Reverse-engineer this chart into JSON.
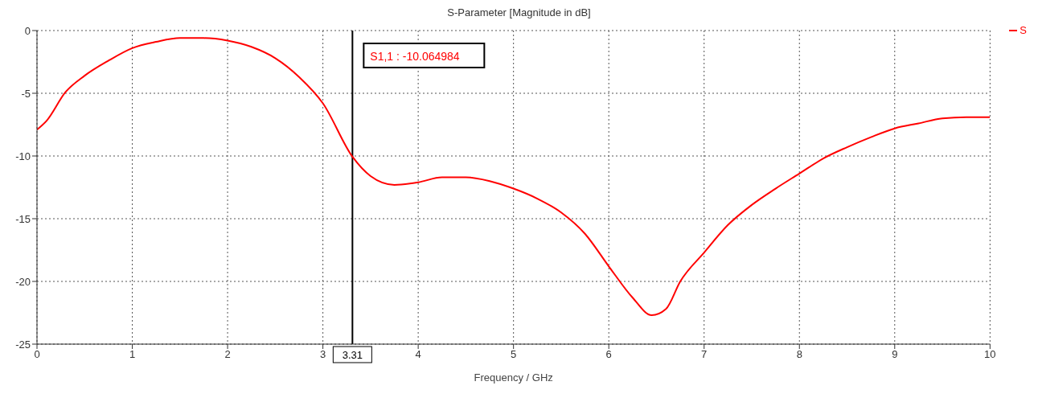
{
  "chart_data": {
    "type": "line",
    "title": "S-Parameter [Magnitude in dB]",
    "xlabel": "Frequency / GHz",
    "x": [
      0,
      0.1,
      0.3,
      0.5,
      0.75,
      1,
      1.25,
      1.5,
      1.75,
      2,
      2.25,
      2.5,
      2.75,
      3,
      3.31,
      3.5,
      3.75,
      4,
      4.25,
      4.5,
      4.75,
      5,
      5.25,
      5.5,
      5.75,
      6,
      6.25,
      6.45,
      6.6,
      6.75,
      7,
      7.25,
      7.5,
      7.75,
      8,
      8.25,
      8.5,
      8.75,
      9,
      9.25,
      9.5,
      9.75,
      10
    ],
    "series": [
      {
        "name": "S",
        "color": "#ff0000",
        "values": [
          -7.9,
          -7.2,
          -4.9,
          -3.6,
          -2.4,
          -1.4,
          -0.9,
          -0.6,
          -0.6,
          -0.8,
          -1.3,
          -2.2,
          -3.7,
          -5.8,
          -10.06,
          -11.6,
          -12.3,
          -12.1,
          -11.7,
          -11.7,
          -12.0,
          -12.6,
          -13.4,
          -14.5,
          -16.2,
          -18.8,
          -21.3,
          -22.7,
          -22.2,
          -20.0,
          -17.7,
          -15.5,
          -13.9,
          -12.6,
          -11.4,
          -10.2,
          -9.3,
          -8.5,
          -7.8,
          -7.4,
          -7.0,
          -6.9,
          -6.9
        ]
      }
    ],
    "xlim": [
      0,
      10
    ],
    "xticks": [
      0,
      1,
      2,
      3,
      4,
      5,
      6,
      7,
      8,
      9,
      10
    ],
    "ylim": [
      -25,
      0
    ],
    "yticks": [
      -25,
      -20,
      -15,
      -10,
      -5,
      0
    ],
    "grid": true,
    "legend": "top right",
    "marker": "none",
    "line_style": "solid",
    "ref_lines": [
      {
        "axis": "x",
        "value": 3.31,
        "label": "3.31",
        "color": "#000000"
      }
    ],
    "annotations": [
      "S1,1 : -10.064984"
    ]
  }
}
